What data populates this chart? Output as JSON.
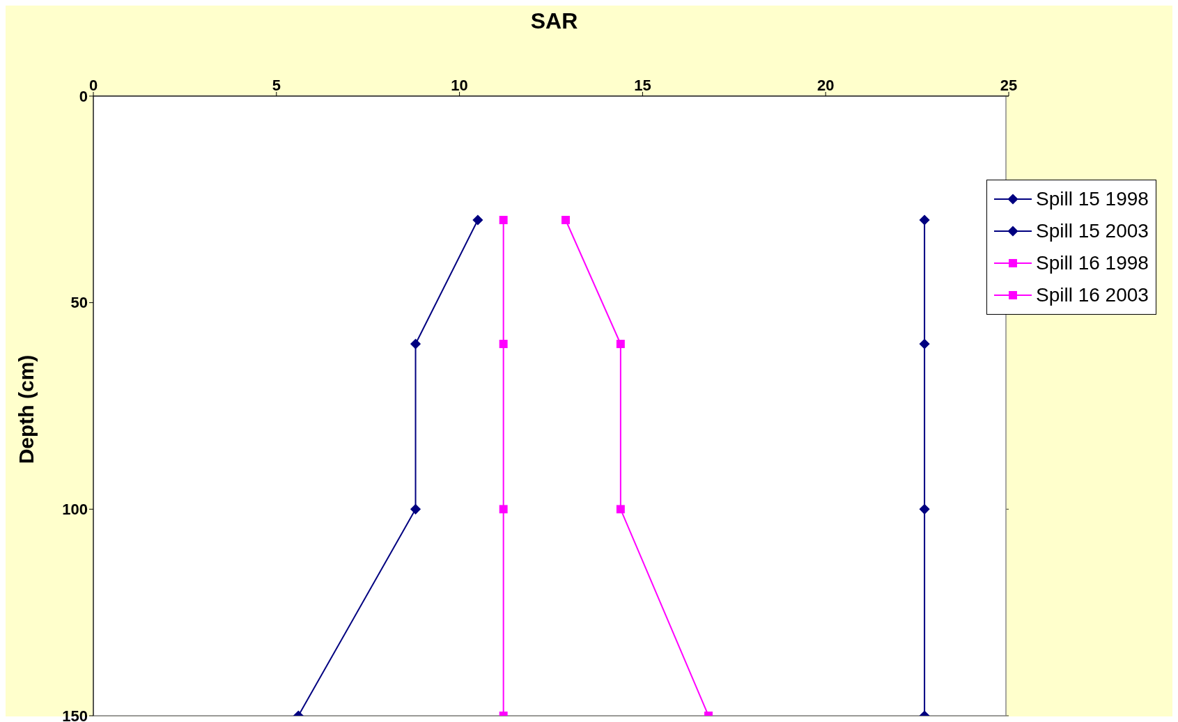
{
  "chart_data": {
    "type": "line",
    "title": "SAR",
    "ylabel": "Depth (cm)",
    "xlim": [
      0,
      25
    ],
    "xticks": [
      0,
      5,
      10,
      15,
      20,
      25
    ],
    "ylim": [
      150,
      0
    ],
    "yticks": [
      0,
      50,
      100,
      150
    ],
    "grid": "y",
    "legend": "right",
    "series": [
      {
        "name": "Spill 15 1998",
        "color": "#000080",
        "marker": "diamond",
        "x": [
          22.7,
          22.7,
          22.7,
          22.7
        ],
        "values": [
          30,
          60,
          100,
          150
        ]
      },
      {
        "name": "Spill 15 2003",
        "color": "#000080",
        "marker": "diamond",
        "x": [
          10.5,
          8.8,
          8.8,
          5.6
        ],
        "values": [
          30,
          60,
          100,
          150
        ]
      },
      {
        "name": "Spill 16 1998",
        "color": "#ff00ff",
        "marker": "square",
        "x": [
          11.2,
          11.2,
          11.2,
          11.2
        ],
        "values": [
          30,
          60,
          100,
          150
        ]
      },
      {
        "name": "Spill 16 2003",
        "color": "#ff00ff",
        "marker": "square",
        "x": [
          12.9,
          14.4,
          14.4,
          16.8
        ],
        "values": [
          30,
          60,
          100,
          150
        ]
      }
    ]
  }
}
